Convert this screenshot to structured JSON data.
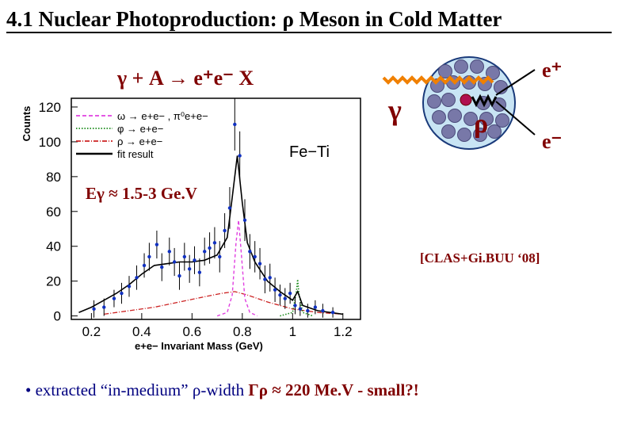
{
  "slide": {
    "title": "4.1 Nuclear Photoproduction: ρ Meson in Cold Matter",
    "reaction": "γ + A → e⁺e⁻ X",
    "beam_energy": "Eγ ≈ 1.5-3 Ge.V",
    "citation": "[CLAS+Gi.BUU ‘08]",
    "bullet_prefix": "• extracted  “in-medium” ρ-width  ",
    "bullet_value": "Γρ ≈ 220 Me.V  - small?!",
    "diagram": {
      "gamma": "γ",
      "rho": "ρ",
      "e_plus": "e⁺",
      "e_minus": "e⁻"
    }
  },
  "chart_data": {
    "type": "scatter",
    "title": "Fe−Ti",
    "xlabel": "e+e− Invariant Mass (GeV)",
    "ylabel": "Counts",
    "xlim": [
      0.12,
      1.27
    ],
    "ylim": [
      -2,
      125
    ],
    "xticks": [
      "0.2",
      "0.4",
      "0.6",
      "0.8",
      "1",
      "1.2"
    ],
    "yticks": [
      "0",
      "20",
      "40",
      "60",
      "80",
      "100",
      "120"
    ],
    "legend": [
      {
        "label": "ω → e+e− , π⁰e+e−",
        "style": "dashed",
        "color": "#e040e0"
      },
      {
        "label": "φ → e+e−",
        "style": "dotted",
        "color": "#1a8a1a"
      },
      {
        "label": "ρ → e+e−",
        "style": "dashdot",
        "color": "#cc2222"
      },
      {
        "label": "fit result",
        "style": "solid",
        "color": "#000000"
      }
    ],
    "data_points": [
      [
        0.21,
        4,
        5
      ],
      [
        0.25,
        5,
        5
      ],
      [
        0.29,
        10,
        5
      ],
      [
        0.32,
        13,
        6
      ],
      [
        0.35,
        17,
        6
      ],
      [
        0.38,
        22,
        7
      ],
      [
        0.41,
        29,
        7
      ],
      [
        0.43,
        34,
        8
      ],
      [
        0.46,
        41,
        8
      ],
      [
        0.48,
        28,
        8
      ],
      [
        0.51,
        37,
        8
      ],
      [
        0.53,
        31,
        8
      ],
      [
        0.55,
        23,
        8
      ],
      [
        0.57,
        34,
        8
      ],
      [
        0.59,
        27,
        8
      ],
      [
        0.61,
        32,
        8
      ],
      [
        0.63,
        25,
        8
      ],
      [
        0.65,
        37,
        8
      ],
      [
        0.67,
        39,
        9
      ],
      [
        0.69,
        42,
        9
      ],
      [
        0.71,
        34,
        9
      ],
      [
        0.73,
        49,
        10
      ],
      [
        0.75,
        62,
        12
      ],
      [
        0.77,
        110,
        15
      ],
      [
        0.79,
        92,
        14
      ],
      [
        0.81,
        55,
        12
      ],
      [
        0.83,
        37,
        10
      ],
      [
        0.85,
        34,
        9
      ],
      [
        0.87,
        30,
        9
      ],
      [
        0.89,
        21,
        8
      ],
      [
        0.91,
        22,
        8
      ],
      [
        0.93,
        15,
        7
      ],
      [
        0.95,
        12,
        6
      ],
      [
        0.97,
        10,
        6
      ],
      [
        0.99,
        13,
        6
      ],
      [
        1.01,
        6,
        5
      ],
      [
        1.03,
        4,
        4
      ],
      [
        1.06,
        3,
        4
      ],
      [
        1.09,
        5,
        4
      ],
      [
        1.12,
        3,
        4
      ],
      [
        1.16,
        2,
        3
      ]
    ],
    "fit_curve": [
      [
        0.15,
        2
      ],
      [
        0.2,
        5
      ],
      [
        0.25,
        9
      ],
      [
        0.3,
        13
      ],
      [
        0.35,
        18
      ],
      [
        0.4,
        24
      ],
      [
        0.45,
        29
      ],
      [
        0.5,
        30
      ],
      [
        0.55,
        31
      ],
      [
        0.6,
        31
      ],
      [
        0.65,
        32
      ],
      [
        0.7,
        35
      ],
      [
        0.74,
        45
      ],
      [
        0.76,
        68
      ],
      [
        0.78,
        92
      ],
      [
        0.8,
        65
      ],
      [
        0.82,
        42
      ],
      [
        0.85,
        31
      ],
      [
        0.9,
        20
      ],
      [
        0.95,
        14
      ],
      [
        1.0,
        9
      ],
      [
        1.02,
        14
      ],
      [
        1.04,
        6
      ],
      [
        1.1,
        3
      ],
      [
        1.2,
        1
      ]
    ],
    "omega_curve": [
      [
        0.7,
        0
      ],
      [
        0.74,
        2
      ],
      [
        0.76,
        12
      ],
      [
        0.775,
        42
      ],
      [
        0.785,
        55
      ],
      [
        0.795,
        38
      ],
      [
        0.81,
        10
      ],
      [
        0.83,
        2
      ],
      [
        0.86,
        0
      ]
    ],
    "phi_curve": [
      [
        0.95,
        0
      ],
      [
        1.0,
        2
      ],
      [
        1.015,
        14
      ],
      [
        1.02,
        21
      ],
      [
        1.025,
        13
      ],
      [
        1.04,
        2
      ],
      [
        1.08,
        0
      ]
    ],
    "rho_curve": [
      [
        0.25,
        1
      ],
      [
        0.35,
        3
      ],
      [
        0.45,
        5
      ],
      [
        0.55,
        8
      ],
      [
        0.65,
        11
      ],
      [
        0.72,
        13
      ],
      [
        0.77,
        14
      ],
      [
        0.82,
        12
      ],
      [
        0.9,
        8
      ],
      [
        1.0,
        4
      ],
      [
        1.1,
        2
      ],
      [
        1.2,
        1
      ]
    ]
  }
}
